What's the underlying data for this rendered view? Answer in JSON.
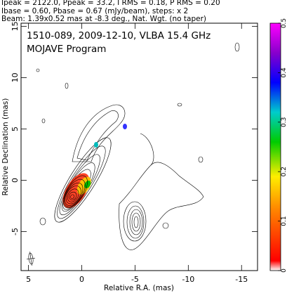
{
  "header": [
    "Ipeak = 2122.0, Ppeak = 33.2, I RMS = 0.18, P RMS = 0.20",
    "Ibase = 0.60, Pbase = 0.67 (mJy/beam), steps: x 2",
    "Beam: 1.39x0.52 mas at -8.3 deg., Nat. Wgt. (no taper)"
  ],
  "chart_data": {
    "type": "contour",
    "title": "1510-089, 2009-12-10, VLBA 15.4 GHz",
    "subtitle": "MOJAVE Program",
    "x_label": "Relative R.A. (mas)",
    "y_label": "Relative Declination (mas)",
    "xlim": [
      5.7,
      -16.5
    ],
    "xticks": [
      5,
      0,
      -5,
      -10,
      -15
    ],
    "ylim": [
      -8.8,
      15.3
    ],
    "yticks": [
      -5,
      0,
      5,
      10,
      15
    ],
    "colorbar_lim": [
      0,
      0.5
    ],
    "colorbar_ticks": [
      0,
      0.1,
      0.2,
      0.3,
      0.4,
      0.5
    ]
  }
}
